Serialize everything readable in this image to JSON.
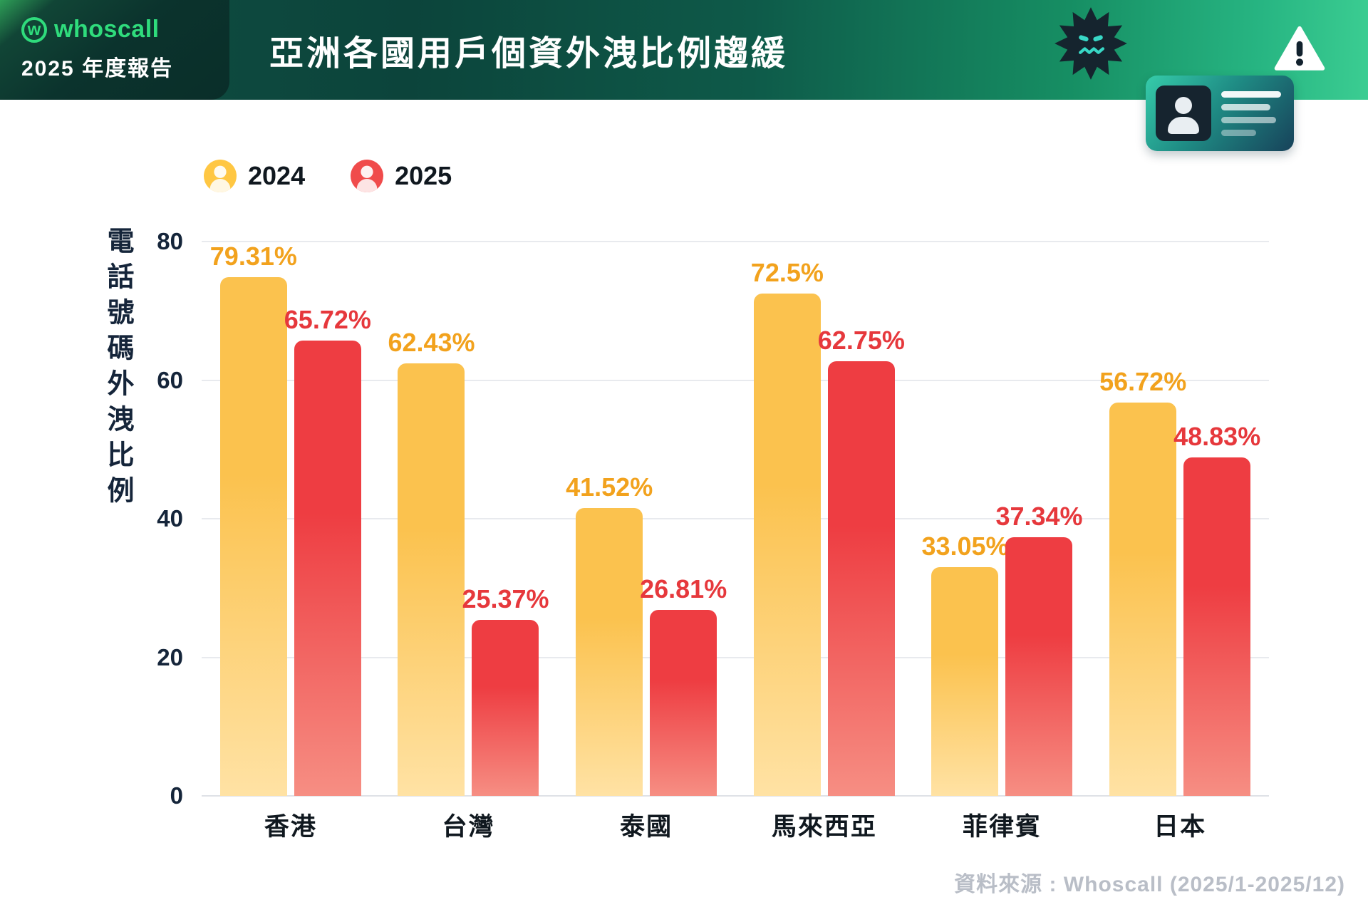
{
  "header": {
    "brand": "whoscall",
    "logo_letter": "w",
    "report": "2025 年度報告",
    "title": "亞洲各國用戶個資外洩比例趨緩",
    "icons": [
      "whoscall-logo-icon",
      "virus-icon",
      "id-card-icon",
      "warning-icon"
    ]
  },
  "legend": [
    {
      "label": "2024",
      "color": "#FFC743",
      "accent": "#FBC24E"
    },
    {
      "label": "2025",
      "color": "#F04B4B",
      "accent": "#ED3E43"
    }
  ],
  "chart_data": {
    "type": "bar",
    "title": "亞洲各國用戶個資外洩比例趨緩",
    "xlabel": "",
    "ylabel": "電話號碼外洩比例",
    "categories": [
      "香港",
      "台灣",
      "泰國",
      "馬來西亞",
      "菲律賓",
      "日本"
    ],
    "series": [
      {
        "name": "2024",
        "values": [
          79.31,
          62.43,
          41.52,
          72.5,
          33.05,
          56.72
        ],
        "color_top": "#FBC24E",
        "color_bottom": "#FFE2A4",
        "label_color": "#F2A21D"
      },
      {
        "name": "2025",
        "values": [
          65.72,
          25.37,
          26.81,
          62.75,
          37.34,
          48.83
        ],
        "color_top": "#EE3D42",
        "color_bottom": "#F68E83",
        "label_color": "#E6383C"
      }
    ],
    "value_suffix": "%",
    "ylim": [
      0,
      80
    ],
    "yticks": [
      0,
      20,
      40,
      60,
      80
    ],
    "grid": true,
    "legend_position": "top-left"
  },
  "footer": {
    "source": "資料來源 : Whoscall (2025/1-2025/12)"
  }
}
